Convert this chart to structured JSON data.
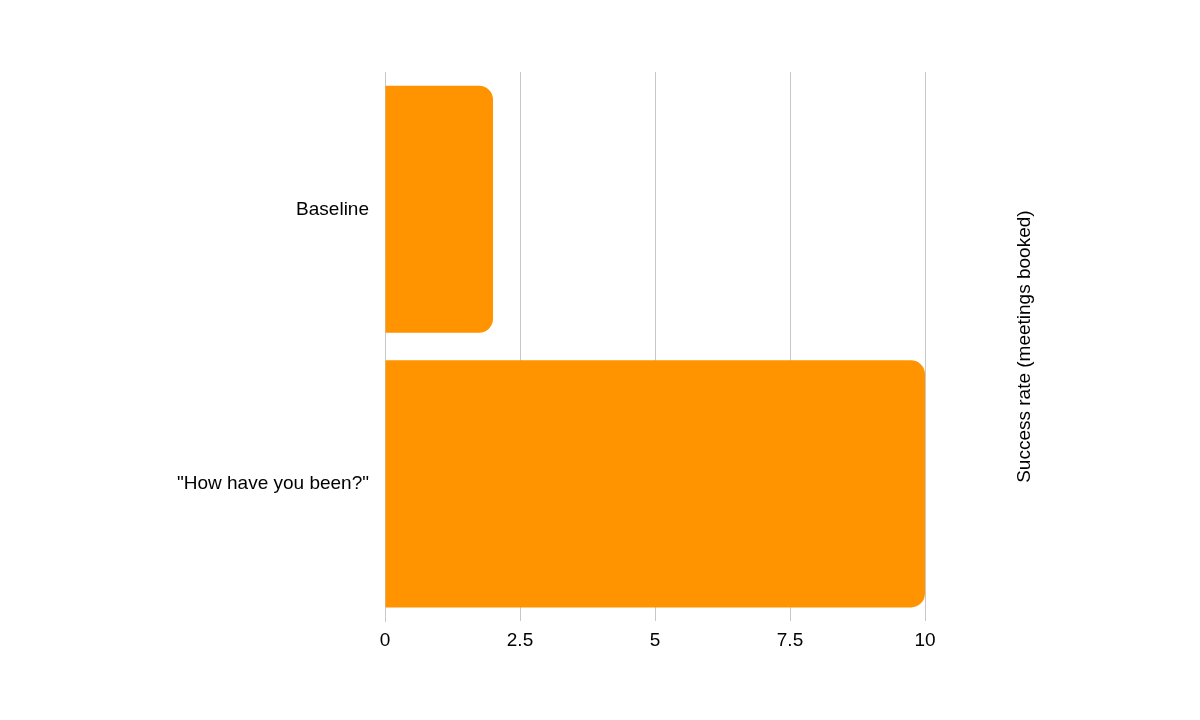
{
  "chart_data": {
    "type": "bar",
    "orientation": "horizontal",
    "categories": [
      "Baseline",
      "\"How have you been?\""
    ],
    "values": [
      2,
      10
    ],
    "color": "#ff9300",
    "y2label": "Success rate (meetings booked)",
    "xlim": [
      0,
      10
    ],
    "xticks": [
      0,
      2.5,
      5,
      7.5,
      10
    ],
    "grid": "x",
    "legend": false
  }
}
